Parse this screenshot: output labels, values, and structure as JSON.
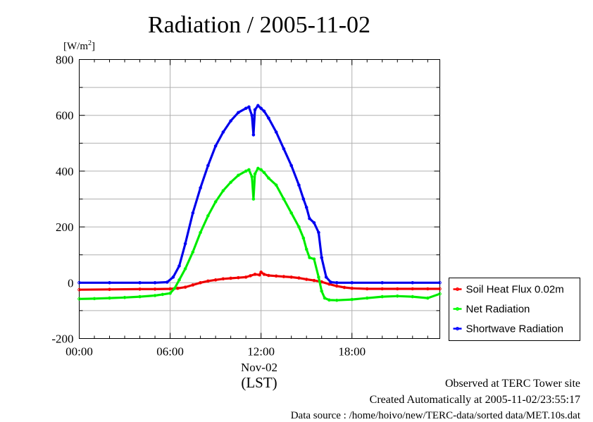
{
  "chart_data": {
    "type": "line",
    "title": "Radiation / 2005-11-02",
    "ylabel_unit": "[W/m2]",
    "ylim": [
      -200,
      800
    ],
    "yticks": [
      -200,
      0,
      200,
      400,
      600,
      800
    ],
    "xlim": [
      0,
      23.8
    ],
    "xticks": [
      {
        "value": 0,
        "label": "00:00"
      },
      {
        "value": 6,
        "label": "06:00"
      },
      {
        "value": 12,
        "label": "12:00"
      },
      {
        "value": 18,
        "label": "18:00"
      }
    ],
    "x_sublabel": "Nov-02",
    "xlabel": "(LST)",
    "grid": true,
    "legend_position": "bottom-right",
    "series": [
      {
        "name": "Soil Heat Flux 0.02m",
        "color": "#ff0000",
        "x": [
          0,
          2,
          4,
          5,
          6,
          6.5,
          7,
          7.5,
          8,
          8.5,
          9,
          9.5,
          10,
          10.5,
          11,
          11.3,
          11.6,
          11.9,
          12.0,
          12.2,
          12.5,
          13,
          13.5,
          14,
          14.5,
          15,
          15.5,
          16,
          16.5,
          17,
          17.5,
          18,
          19,
          20,
          21,
          22,
          23,
          23.8
        ],
        "y": [
          -25,
          -24,
          -23,
          -23,
          -22,
          -20,
          -16,
          -8,
          0,
          6,
          10,
          14,
          16,
          18,
          20,
          25,
          30,
          28,
          38,
          30,
          26,
          24,
          22,
          20,
          17,
          12,
          8,
          3,
          -5,
          -12,
          -17,
          -20,
          -22,
          -22,
          -22,
          -22,
          -22,
          -22
        ]
      },
      {
        "name": "Net Radiation",
        "color": "#00ff00",
        "x": [
          0,
          1,
          2,
          3,
          4,
          5,
          5.5,
          6,
          6.3,
          6.6,
          7,
          7.5,
          8,
          8.5,
          9,
          9.5,
          10,
          10.5,
          11,
          11.2,
          11.4,
          11.5,
          11.6,
          11.8,
          12.0,
          12.2,
          12.5,
          13,
          13.5,
          14,
          14.5,
          14.8,
          15,
          15.2,
          15.5,
          15.8,
          16,
          16.2,
          16.5,
          17,
          18,
          19,
          20,
          21,
          22,
          23,
          23.8
        ],
        "y": [
          -58,
          -57,
          -55,
          -53,
          -50,
          -46,
          -42,
          -38,
          -20,
          10,
          50,
          110,
          180,
          240,
          290,
          330,
          360,
          385,
          400,
          405,
          380,
          300,
          390,
          410,
          405,
          395,
          375,
          350,
          300,
          250,
          200,
          160,
          120,
          90,
          85,
          20,
          -30,
          -55,
          -62,
          -63,
          -60,
          -55,
          -50,
          -48,
          -50,
          -55,
          -40
        ]
      },
      {
        "name": "Shortwave Radiation",
        "color": "#0000ff",
        "x": [
          0,
          2,
          4,
          5,
          5.8,
          6.2,
          6.6,
          7,
          7.5,
          8,
          8.5,
          9,
          9.5,
          10,
          10.5,
          11,
          11.2,
          11.4,
          11.5,
          11.6,
          11.8,
          12.0,
          12.2,
          12.5,
          13,
          13.5,
          14,
          14.5,
          14.8,
          15,
          15.2,
          15.5,
          15.8,
          16,
          16.3,
          16.6,
          17,
          18,
          20,
          22,
          23.8
        ],
        "y": [
          0,
          0,
          0,
          0,
          2,
          20,
          60,
          140,
          250,
          340,
          420,
          490,
          540,
          580,
          610,
          625,
          630,
          600,
          530,
          620,
          635,
          625,
          615,
          590,
          540,
          480,
          420,
          350,
          300,
          270,
          230,
          215,
          180,
          90,
          20,
          2,
          0,
          0,
          0,
          0,
          0
        ]
      }
    ]
  },
  "footer": {
    "line1": "Observed at TERC Tower site",
    "line2": "Created Automatically at 2005-11-02/23:55:17",
    "line3": "Data source : /home/hoivo/new/TERC-data/sorted data/MET.10s.dat"
  }
}
